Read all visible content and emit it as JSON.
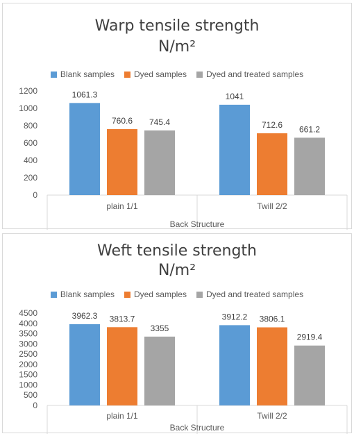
{
  "chart_data": [
    {
      "type": "bar",
      "title_main": "Warp tensile strength",
      "title_unit": "N/m²",
      "xlabel": "Back Structure",
      "ylabel": "",
      "categories": [
        "plain 1/1",
        "Twill 2/2"
      ],
      "series": [
        {
          "name": "Blank samples",
          "color": "#5b9bd5",
          "values": [
            1061.3,
            1041
          ],
          "labels": [
            "1061.3",
            "1041"
          ]
        },
        {
          "name": "Dyed samples",
          "color": "#ed7d31",
          "values": [
            760.6,
            712.6
          ],
          "labels": [
            "760.6",
            "712.6"
          ]
        },
        {
          "name": "Dyed and treated samples",
          "color": "#a5a5a5",
          "values": [
            745.4,
            661.2
          ],
          "labels": [
            "745.4",
            "661.2"
          ]
        }
      ],
      "ylim": [
        0,
        1200
      ],
      "yticks": [
        "0",
        "200",
        "400",
        "600",
        "800",
        "1000",
        "1200"
      ],
      "legend_position": "top",
      "grid": false
    },
    {
      "type": "bar",
      "title_main": "Weft tensile strength",
      "title_unit": "N/m²",
      "xlabel": "Back Structure",
      "ylabel": "",
      "categories": [
        "plain 1/1",
        "Twill 2/2"
      ],
      "series": [
        {
          "name": "Blank samples",
          "color": "#5b9bd5",
          "values": [
            3962.3,
            3912.2
          ],
          "labels": [
            "3962.3",
            "3912.2"
          ]
        },
        {
          "name": "Dyed samples",
          "color": "#ed7d31",
          "values": [
            3813.7,
            3806.1
          ],
          "labels": [
            "3813.7",
            "3806.1"
          ]
        },
        {
          "name": "Dyed and treated samples",
          "color": "#a5a5a5",
          "values": [
            3355,
            2919.4
          ],
          "labels": [
            "3355",
            "2919.4"
          ]
        }
      ],
      "ylim": [
        0,
        4500
      ],
      "yticks": [
        "0",
        "500",
        "1000",
        "1500",
        "2000",
        "2500",
        "3000",
        "3500",
        "4000",
        "4500"
      ],
      "legend_position": "top",
      "grid": false
    }
  ]
}
